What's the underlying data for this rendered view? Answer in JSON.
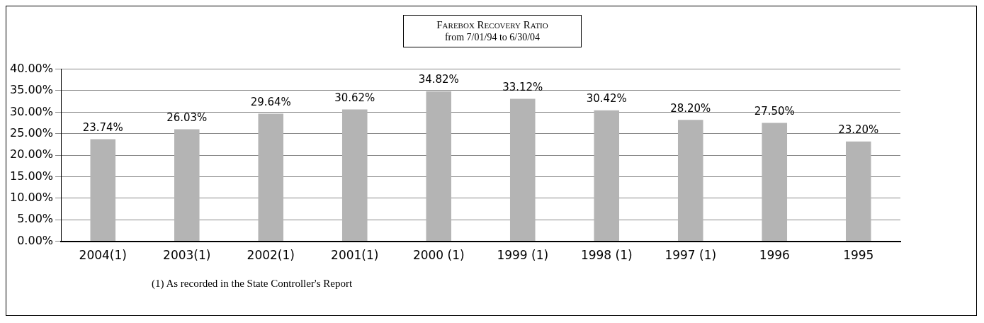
{
  "chart_data": {
    "type": "bar",
    "title": "Farebox Recovery Ratio",
    "subtitle": "from 7/01/94 to 6/30/04",
    "categories": [
      "2004(1)",
      "2003(1)",
      "2002(1)",
      "2001(1)",
      "2000 (1)",
      "1999 (1)",
      "1998 (1)",
      "1997 (1)",
      "1996",
      "1995"
    ],
    "values": [
      23.74,
      26.03,
      29.64,
      30.62,
      34.82,
      33.12,
      30.42,
      28.2,
      27.5,
      23.2
    ],
    "value_labels": [
      "23.74%",
      "26.03%",
      "29.64%",
      "30.62%",
      "34.82%",
      "33.12%",
      "30.42%",
      "28.20%",
      "27.50%",
      "23.20%"
    ],
    "color": "#b4b4b4",
    "ylim": [
      0,
      40
    ],
    "yticks": [
      {
        "value": 0,
        "label": "0.00%"
      },
      {
        "value": 5,
        "label": "5.00%"
      },
      {
        "value": 10,
        "label": "10.00%"
      },
      {
        "value": 15,
        "label": "15.00%"
      },
      {
        "value": 20,
        "label": "20.00%"
      },
      {
        "value": 25,
        "label": "25.00%"
      },
      {
        "value": 30,
        "label": "30.00%"
      },
      {
        "value": 35,
        "label": "35.00%"
      },
      {
        "value": 40,
        "label": "40.00%"
      }
    ],
    "grid": "y",
    "legend": false,
    "annotations": [
      "(1) As recorded in the State Controller's Report"
    ]
  }
}
